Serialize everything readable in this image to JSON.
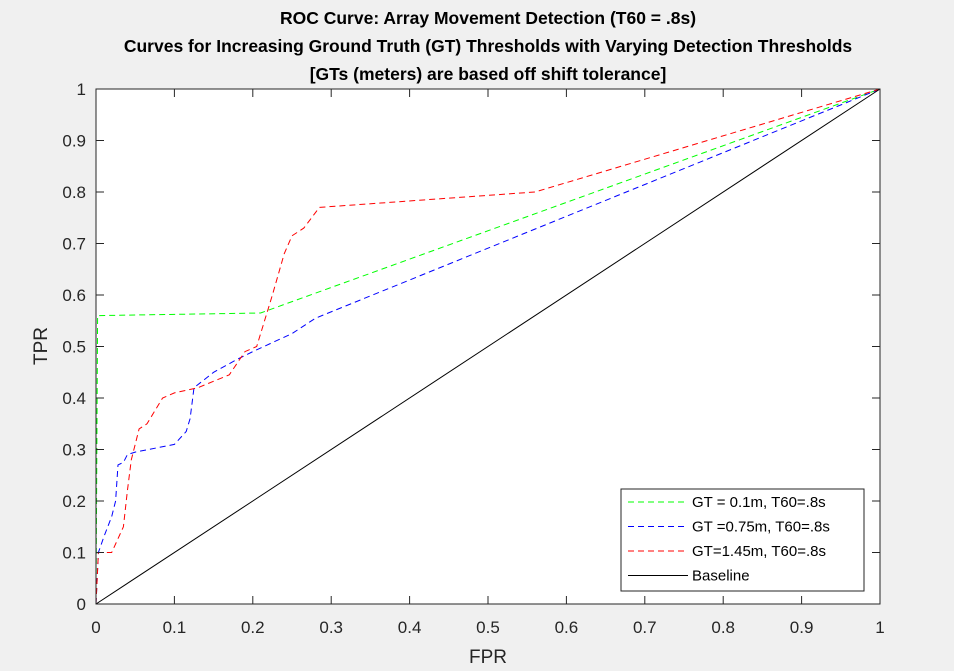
{
  "chart_data": {
    "type": "line",
    "title_lines": [
      "ROC Curve: Array Movement Detection (T60 = .8s)",
      "Curves for Increasing Ground Truth (GT) Thresholds with Varying Detection Thresholds",
      "[GTs (meters) are based off shift tolerance]"
    ],
    "xlabel": "FPR",
    "ylabel": "TPR",
    "xlim": [
      0,
      1
    ],
    "ylim": [
      0,
      1
    ],
    "xticks": [
      0,
      0.1,
      0.2,
      0.3,
      0.4,
      0.5,
      0.6,
      0.7,
      0.8,
      0.9,
      1
    ],
    "yticks": [
      0,
      0.1,
      0.2,
      0.3,
      0.4,
      0.5,
      0.6,
      0.7,
      0.8,
      0.9,
      1
    ],
    "xtick_labels": [
      "0",
      "0.1",
      "0.2",
      "0.3",
      "0.4",
      "0.5",
      "0.6",
      "0.7",
      "0.8",
      "0.9",
      "1"
    ],
    "ytick_labels": [
      "0",
      "0.1",
      "0.2",
      "0.3",
      "0.4",
      "0.5",
      "0.6",
      "0.7",
      "0.8",
      "0.9",
      "1"
    ],
    "grid": false,
    "legend_position": "bottom-right",
    "series": [
      {
        "name": "GT = 0.1m, T60=.8s",
        "color": "#00ff00",
        "style": "dashed",
        "points": [
          [
            0,
            0
          ],
          [
            0.002,
            0.56
          ],
          [
            0.21,
            0.565
          ],
          [
            1,
            1
          ]
        ]
      },
      {
        "name": "GT =0.75m, T60=.8s",
        "color": "#0000ff",
        "style": "dashed",
        "points": [
          [
            0,
            0
          ],
          [
            0.003,
            0.1
          ],
          [
            0.01,
            0.13
          ],
          [
            0.02,
            0.17
          ],
          [
            0.025,
            0.2
          ],
          [
            0.028,
            0.27
          ],
          [
            0.035,
            0.275
          ],
          [
            0.04,
            0.29
          ],
          [
            0.05,
            0.295
          ],
          [
            0.1,
            0.31
          ],
          [
            0.115,
            0.335
          ],
          [
            0.12,
            0.36
          ],
          [
            0.125,
            0.42
          ],
          [
            0.15,
            0.45
          ],
          [
            0.18,
            0.475
          ],
          [
            0.2,
            0.49
          ],
          [
            0.25,
            0.525
          ],
          [
            0.28,
            0.555
          ],
          [
            1,
            1
          ]
        ]
      },
      {
        "name": "GT=1.45m, T60=.8s",
        "color": "#ff0000",
        "style": "dashed",
        "points": [
          [
            0,
            0
          ],
          [
            0.003,
            0.1
          ],
          [
            0.02,
            0.1
          ],
          [
            0.035,
            0.15
          ],
          [
            0.04,
            0.22
          ],
          [
            0.045,
            0.28
          ],
          [
            0.055,
            0.34
          ],
          [
            0.065,
            0.35
          ],
          [
            0.085,
            0.4
          ],
          [
            0.1,
            0.41
          ],
          [
            0.13,
            0.42
          ],
          [
            0.17,
            0.445
          ],
          [
            0.19,
            0.49
          ],
          [
            0.205,
            0.5
          ],
          [
            0.225,
            0.6
          ],
          [
            0.24,
            0.68
          ],
          [
            0.25,
            0.715
          ],
          [
            0.265,
            0.73
          ],
          [
            0.285,
            0.77
          ],
          [
            0.56,
            0.8
          ],
          [
            1,
            1
          ]
        ]
      },
      {
        "name": "Baseline",
        "color": "#000000",
        "style": "solid",
        "points": [
          [
            0,
            0
          ],
          [
            1,
            1
          ]
        ]
      }
    ]
  }
}
